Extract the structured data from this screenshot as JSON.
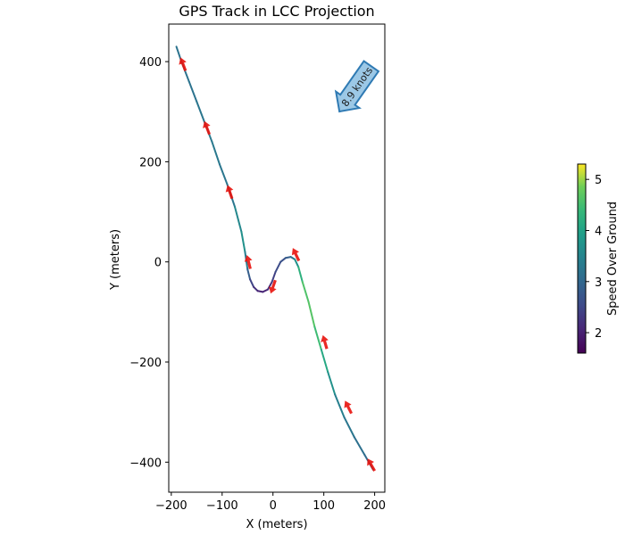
{
  "chart_data": {
    "type": "line",
    "title": "GPS Track in LCC Projection",
    "xlabel": "X (meters)",
    "ylabel": "Y (meters)",
    "xlim": [
      -205,
      220
    ],
    "ylim": [
      -460,
      475
    ],
    "xticks": [
      -200,
      -100,
      0,
      100,
      200
    ],
    "yticks": [
      -400,
      -200,
      0,
      200,
      400
    ],
    "xtick_labels": [
      "−200",
      "−100",
      "0",
      "100",
      "200"
    ],
    "ytick_labels": [
      "−400",
      "−200",
      "0",
      "200",
      "400"
    ],
    "grid": false,
    "track": {
      "x": [
        -190,
        -180,
        -165,
        -150,
        -135,
        -120,
        -105,
        -90,
        -75,
        -62,
        -55,
        -50,
        -45,
        -38,
        -30,
        -20,
        -10,
        -2,
        5,
        15,
        25,
        35,
        43,
        50,
        58,
        70,
        82,
        95,
        108,
        122,
        140,
        160,
        180,
        197
      ],
      "y": [
        430,
        400,
        360,
        320,
        280,
        240,
        195,
        155,
        110,
        60,
        20,
        -15,
        -35,
        -50,
        -58,
        -60,
        -55,
        -40,
        -20,
        0,
        8,
        10,
        5,
        -10,
        -40,
        -80,
        -130,
        -175,
        -220,
        -265,
        -310,
        -350,
        -385,
        -415
      ],
      "sog": [
        3.2,
        3.2,
        3.2,
        3.2,
        3.3,
        3.3,
        3.3,
        3.2,
        3.3,
        3.8,
        3.6,
        3.1,
        2.6,
        2.3,
        2.1,
        2.0,
        2.1,
        2.3,
        2.5,
        2.6,
        2.7,
        3.0,
        3.4,
        4.0,
        4.5,
        4.7,
        4.6,
        4.3,
        3.9,
        3.5,
        3.3,
        3.2,
        3.1,
        3.0
      ]
    },
    "heading_arrows": [
      {
        "x": -177,
        "y": 395,
        "dir": "up"
      },
      {
        "x": -130,
        "y": 268,
        "dir": "up"
      },
      {
        "x": -85,
        "y": 140,
        "dir": "up"
      },
      {
        "x": -48,
        "y": 0,
        "dir": "up"
      },
      {
        "x": 0,
        "y": -50,
        "dir": "down"
      },
      {
        "x": 45,
        "y": 15,
        "dir": "up"
      },
      {
        "x": 102,
        "y": -160,
        "dir": "up"
      },
      {
        "x": 148,
        "y": -290,
        "dir": "up"
      },
      {
        "x": 193,
        "y": -405,
        "dir": "up"
      }
    ],
    "annotation": {
      "text": "8.9 knots",
      "x": 165,
      "y": 350
    },
    "colorbar": {
      "label": "Speed Over Ground",
      "min": 1.6,
      "max": 5.3,
      "ticks": [
        2,
        3,
        4,
        5
      ],
      "tick_labels": [
        "2",
        "3",
        "4",
        "5"
      ],
      "colormap": "viridis"
    }
  }
}
